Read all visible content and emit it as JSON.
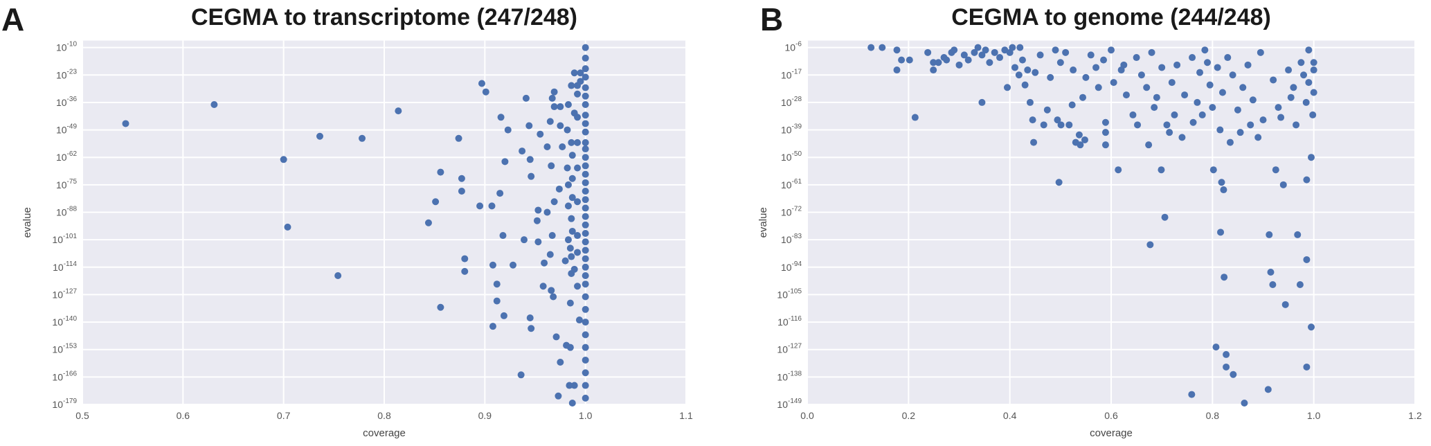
{
  "colors": {
    "plot_bg": "#eaeaf2",
    "grid": "#ffffff",
    "marker": "#4c72b0",
    "text": "#555555"
  },
  "chart_data": [
    {
      "panel_letter": "A",
      "type": "scatter",
      "title": "CEGMA to transcriptome (247/248)",
      "xlabel": "coverage",
      "ylabel": "evalue",
      "xlim": [
        0.5,
        1.1
      ],
      "xticks": [
        "0.5",
        "0.6",
        "0.7",
        "0.8",
        "0.9",
        "1.0",
        "1.1"
      ],
      "yscale": "log",
      "ylim": [
        1e-179,
        2e-07
      ],
      "ytick_base": "10",
      "ytick_exponents": [
        "-10",
        "-23",
        "-36",
        "-49",
        "-62",
        "-75",
        "-88",
        "-101",
        "-114",
        "-127",
        "-140",
        "-153",
        "-166",
        "-179"
      ],
      "grid": true,
      "points": [
        [
          0.543,
          1e-46
        ],
        [
          0.631,
          1e-37
        ],
        [
          0.736,
          1e-52
        ],
        [
          0.778,
          1e-53
        ],
        [
          0.7,
          1e-63
        ],
        [
          0.704,
          1e-95
        ],
        [
          0.754,
          1e-118
        ],
        [
          0.814,
          1e-40
        ],
        [
          0.897,
          1e-27
        ],
        [
          0.901,
          1e-31
        ],
        [
          0.874,
          1e-53
        ],
        [
          0.916,
          1e-43
        ],
        [
          0.923,
          1e-49
        ],
        [
          0.941,
          1e-34
        ],
        [
          0.944,
          1e-47
        ],
        [
          0.856,
          1e-69
        ],
        [
          0.877,
          1e-72
        ],
        [
          0.877,
          1e-78
        ],
        [
          0.915,
          1e-79
        ],
        [
          0.895,
          1e-85
        ],
        [
          0.907,
          1e-85
        ],
        [
          0.851,
          1e-83
        ],
        [
          0.844,
          1e-93
        ],
        [
          0.918,
          1e-99
        ],
        [
          0.88,
          1e-110
        ],
        [
          0.88,
          1e-116
        ],
        [
          0.856,
          1e-133
        ],
        [
          0.908,
          1e-113
        ],
        [
          0.912,
          1e-122
        ],
        [
          0.912,
          1e-130
        ],
        [
          0.908,
          1e-142
        ],
        [
          0.919,
          1e-137
        ],
        [
          0.92,
          1e-64
        ],
        [
          0.945,
          1e-63
        ],
        [
          0.937,
          1e-59
        ],
        [
          0.946,
          1e-71
        ],
        [
          0.939,
          1e-101
        ],
        [
          0.928,
          1e-113
        ],
        [
          0.945,
          1e-138
        ],
        [
          0.946,
          1e-143
        ],
        [
          0.936,
          1e-165
        ],
        [
          0.953,
          1e-102
        ],
        [
          0.958,
          1e-123
        ],
        [
          0.966,
          1e-125
        ],
        [
          0.959,
          1e-112
        ],
        [
          0.953,
          1e-87
        ],
        [
          0.962,
          1e-88
        ],
        [
          0.952,
          1e-92
        ],
        [
          0.955,
          1e-51
        ],
        [
          0.962,
          1e-57
        ],
        [
          0.966,
          1e-66
        ],
        [
          0.965,
          1e-45
        ],
        [
          0.969,
          1e-38
        ],
        [
          0.967,
          1e-34
        ],
        [
          0.969,
          1e-31
        ],
        [
          0.975,
          1e-38
        ],
        [
          0.975,
          1e-47
        ],
        [
          0.977,
          1e-57
        ],
        [
          0.974,
          1e-77
        ],
        [
          0.969,
          1e-83
        ],
        [
          0.967,
          1e-99
        ],
        [
          0.965,
          1e-108
        ],
        [
          0.98,
          1e-111
        ],
        [
          0.968,
          1e-128
        ],
        [
          0.971,
          1e-147
        ],
        [
          0.975,
          1e-159
        ],
        [
          0.973,
          1e-175
        ],
        [
          0.985,
          1e-131
        ],
        [
          0.981,
          1e-151
        ],
        [
          0.985,
          1e-152
        ],
        [
          0.984,
          1e-170
        ],
        [
          0.989,
          1e-170
        ],
        [
          0.987,
          1e-179
        ],
        [
          0.983,
          1e-37
        ],
        [
          0.986,
          1e-28
        ],
        [
          0.989,
          1e-41
        ],
        [
          0.982,
          1e-49
        ],
        [
          0.986,
          1e-55
        ],
        [
          0.987,
          1e-61
        ],
        [
          0.982,
          1e-67
        ],
        [
          0.987,
          1e-72
        ],
        [
          0.983,
          1e-75
        ],
        [
          0.987,
          1e-81
        ],
        [
          0.983,
          1e-85
        ],
        [
          0.986,
          1e-91
        ],
        [
          0.987,
          1e-97
        ],
        [
          0.983,
          1e-101
        ],
        [
          0.985,
          1e-105
        ],
        [
          0.986,
          1e-109
        ],
        [
          0.989,
          1e-115
        ],
        [
          0.986,
          1e-117
        ],
        [
          0.992,
          1e-28
        ],
        [
          0.992,
          1e-32
        ],
        [
          0.992,
          1e-43
        ],
        [
          0.992,
          1e-55
        ],
        [
          0.992,
          1e-67
        ],
        [
          0.992,
          1e-83
        ],
        [
          0.992,
          1e-99
        ],
        [
          0.992,
          1e-107
        ],
        [
          0.992,
          1e-123
        ],
        [
          0.994,
          1e-139
        ],
        [
          0.995,
          1e-22
        ],
        [
          0.995,
          1e-26
        ],
        [
          0.989,
          1e-22
        ],
        [
          1.0,
          1e-10
        ],
        [
          1.0,
          1e-15
        ],
        [
          1.0,
          1e-20
        ],
        [
          1.0,
          1e-24
        ],
        [
          1.0,
          1e-29
        ],
        [
          1.0,
          1e-33
        ],
        [
          1.0,
          1e-37
        ],
        [
          1.0,
          1e-42
        ],
        [
          1.0,
          1e-46
        ],
        [
          1.0,
          1e-50
        ],
        [
          1.0,
          1e-55
        ],
        [
          1.0,
          1e-58
        ],
        [
          1.0,
          1e-62
        ],
        [
          1.0,
          1e-66
        ],
        [
          1.0,
          1e-70
        ],
        [
          1.0,
          1e-74
        ],
        [
          1.0,
          1e-78
        ],
        [
          1.0,
          1e-82
        ],
        [
          1.0,
          1e-86
        ],
        [
          1.0,
          1e-90
        ],
        [
          1.0,
          1e-94
        ],
        [
          1.0,
          1e-98
        ],
        [
          1.0,
          1e-102
        ],
        [
          1.0,
          1e-106
        ],
        [
          1.0,
          1e-110
        ],
        [
          1.0,
          1e-114
        ],
        [
          1.0,
          1e-118
        ],
        [
          1.0,
          1e-122
        ],
        [
          1.0,
          1e-128
        ],
        [
          1.0,
          1e-134
        ],
        [
          1.0,
          1e-140
        ],
        [
          1.0,
          1e-146
        ],
        [
          1.0,
          1e-152
        ],
        [
          1.0,
          1e-158
        ],
        [
          1.0,
          1e-164
        ],
        [
          1.0,
          1e-170
        ],
        [
          1.0,
          1e-176
        ]
      ]
    },
    {
      "panel_letter": "B",
      "type": "scatter",
      "title": "CEGMA to genome (244/248)",
      "xlabel": "coverage",
      "ylabel": "evalue",
      "xlim": [
        0.0,
        1.2
      ],
      "xticks": [
        "0.0",
        "0.2",
        "0.4",
        "0.6",
        "0.8",
        "1.0",
        "1.2"
      ],
      "yscale": "log",
      "ylim": [
        1e-149,
        0.0006
      ],
      "ytick_base": "10",
      "ytick_exponents": [
        "-6",
        "-17",
        "-28",
        "-39",
        "-50",
        "-61",
        "-72",
        "-83",
        "-94",
        "-105",
        "-116",
        "-127",
        "-138",
        "-149"
      ],
      "grid": true,
      "points": [
        [
          0.126,
          1e-06
        ],
        [
          0.148,
          1e-06
        ],
        [
          0.177,
          1e-07
        ],
        [
          0.177,
          1e-15
        ],
        [
          0.186,
          1e-11
        ],
        [
          0.202,
          1e-11
        ],
        [
          0.213,
          1e-34
        ],
        [
          0.238,
          1e-08
        ],
        [
          0.249,
          1e-12
        ],
        [
          0.249,
          1e-15
        ],
        [
          0.259,
          1e-12
        ],
        [
          0.27,
          1e-10
        ],
        [
          0.275,
          1e-11
        ],
        [
          0.285,
          1e-08
        ],
        [
          0.29,
          1e-07
        ],
        [
          0.3,
          1e-13
        ],
        [
          0.31,
          1e-09
        ],
        [
          0.318,
          1e-11
        ],
        [
          0.33,
          1e-08
        ],
        [
          0.337,
          1e-06
        ],
        [
          0.345,
          1e-09
        ],
        [
          0.352,
          1e-07
        ],
        [
          0.36,
          1e-12
        ],
        [
          0.345,
          1e-28
        ],
        [
          0.37,
          1e-08
        ],
        [
          0.38,
          1e-10
        ],
        [
          0.39,
          1e-07
        ],
        [
          0.395,
          1e-22
        ],
        [
          0.4,
          1e-08
        ],
        [
          0.405,
          1e-06
        ],
        [
          0.41,
          1e-14
        ],
        [
          0.418,
          1e-17
        ],
        [
          0.42,
          1e-06
        ],
        [
          0.425,
          1e-11
        ],
        [
          0.43,
          1e-21
        ],
        [
          0.435,
          1e-15
        ],
        [
          0.44,
          1e-28
        ],
        [
          0.445,
          1e-35
        ],
        [
          0.447,
          1e-44
        ],
        [
          0.45,
          1e-16
        ],
        [
          0.46,
          1e-09
        ],
        [
          0.467,
          1e-37
        ],
        [
          0.474,
          1e-31
        ],
        [
          0.48,
          1e-18
        ],
        [
          0.49,
          1e-07
        ],
        [
          0.494,
          1e-35
        ],
        [
          0.497,
          1e-60
        ],
        [
          0.5,
          1e-12
        ],
        [
          0.501,
          1e-37
        ],
        [
          0.51,
          1e-08
        ],
        [
          0.517,
          1e-37
        ],
        [
          0.523,
          1e-29
        ],
        [
          0.525,
          1e-15
        ],
        [
          0.53,
          1e-44
        ],
        [
          0.537,
          1e-41
        ],
        [
          0.539,
          1e-45
        ],
        [
          0.544,
          1e-26
        ],
        [
          0.548,
          1e-43
        ],
        [
          0.55,
          1e-18
        ],
        [
          0.56,
          1e-09
        ],
        [
          0.57,
          1e-14
        ],
        [
          0.575,
          1e-22
        ],
        [
          0.585,
          1e-11
        ],
        [
          0.589,
          1e-36
        ],
        [
          0.589,
          1e-40
        ],
        [
          0.589,
          1e-45
        ],
        [
          0.6,
          1e-07
        ],
        [
          0.605,
          1e-20
        ],
        [
          0.614,
          1e-55
        ],
        [
          0.62,
          1e-15
        ],
        [
          0.625,
          1e-13
        ],
        [
          0.63,
          1e-25
        ],
        [
          0.643,
          1e-33
        ],
        [
          0.65,
          1e-10
        ],
        [
          0.652,
          1e-37
        ],
        [
          0.66,
          1e-17
        ],
        [
          0.67,
          1e-22
        ],
        [
          0.674,
          1e-45
        ],
        [
          0.677,
          1e-85
        ],
        [
          0.68,
          1e-08
        ],
        [
          0.685,
          1e-30
        ],
        [
          0.69,
          1e-26
        ],
        [
          0.699,
          1e-55
        ],
        [
          0.7,
          1e-14
        ],
        [
          0.706,
          1e-74
        ],
        [
          0.71,
          1e-37
        ],
        [
          0.715,
          1e-40
        ],
        [
          0.72,
          1e-20
        ],
        [
          0.725,
          1e-33
        ],
        [
          0.73,
          1e-13
        ],
        [
          0.74,
          1e-42
        ],
        [
          0.745,
          1e-25
        ],
        [
          0.759,
          1e-145
        ],
        [
          0.76,
          1e-10
        ],
        [
          0.762,
          1e-36
        ],
        [
          0.77,
          1e-28
        ],
        [
          0.775,
          1e-16
        ],
        [
          0.78,
          1e-33
        ],
        [
          0.785,
          1e-07
        ],
        [
          0.79,
          1e-12
        ],
        [
          0.795,
          1e-21
        ],
        [
          0.8,
          1e-30
        ],
        [
          0.802,
          1e-55
        ],
        [
          0.807,
          1e-126
        ],
        [
          0.81,
          1e-14
        ],
        [
          0.815,
          1e-39
        ],
        [
          0.816,
          1e-80
        ],
        [
          0.818,
          1e-60
        ],
        [
          0.82,
          1e-24
        ],
        [
          0.822,
          1e-63
        ],
        [
          0.823,
          1e-98
        ],
        [
          0.827,
          1e-129
        ],
        [
          0.827,
          1e-134
        ],
        [
          0.83,
          1e-10
        ],
        [
          0.835,
          1e-44
        ],
        [
          0.84,
          1e-17
        ],
        [
          0.841,
          1e-137
        ],
        [
          0.85,
          1e-31
        ],
        [
          0.855,
          1e-40
        ],
        [
          0.86,
          1e-22
        ],
        [
          0.863,
          1e-149
        ],
        [
          0.87,
          1e-13
        ],
        [
          0.875,
          1e-37
        ],
        [
          0.88,
          1e-27
        ],
        [
          0.89,
          1e-42
        ],
        [
          0.895,
          1e-08
        ],
        [
          0.9,
          1e-35
        ],
        [
          0.91,
          1e-143
        ],
        [
          0.912,
          1e-81
        ],
        [
          0.915,
          1e-96
        ],
        [
          0.919,
          1e-101
        ],
        [
          0.92,
          1e-19
        ],
        [
          0.925,
          1e-55
        ],
        [
          0.93,
          1e-30
        ],
        [
          0.935,
          1e-34
        ],
        [
          0.94,
          1e-61
        ],
        [
          0.944,
          1e-109
        ],
        [
          0.95,
          1e-15
        ],
        [
          0.955,
          1e-26
        ],
        [
          0.96,
          1e-22
        ],
        [
          0.965,
          1e-37
        ],
        [
          0.968,
          1e-81
        ],
        [
          0.973,
          1e-101
        ],
        [
          0.975,
          1e-12
        ],
        [
          0.98,
          1e-17
        ],
        [
          0.985,
          1e-28
        ],
        [
          0.986,
          1e-91
        ],
        [
          0.986,
          1e-59
        ],
        [
          0.986,
          1e-134
        ],
        [
          0.99,
          1e-07
        ],
        [
          0.99,
          1e-20
        ],
        [
          0.995,
          1e-50
        ],
        [
          0.995,
          1e-118
        ],
        [
          0.998,
          1e-33
        ],
        [
          1.0,
          1e-12
        ],
        [
          1.0,
          1e-15
        ],
        [
          1.0,
          1e-24
        ]
      ]
    }
  ]
}
